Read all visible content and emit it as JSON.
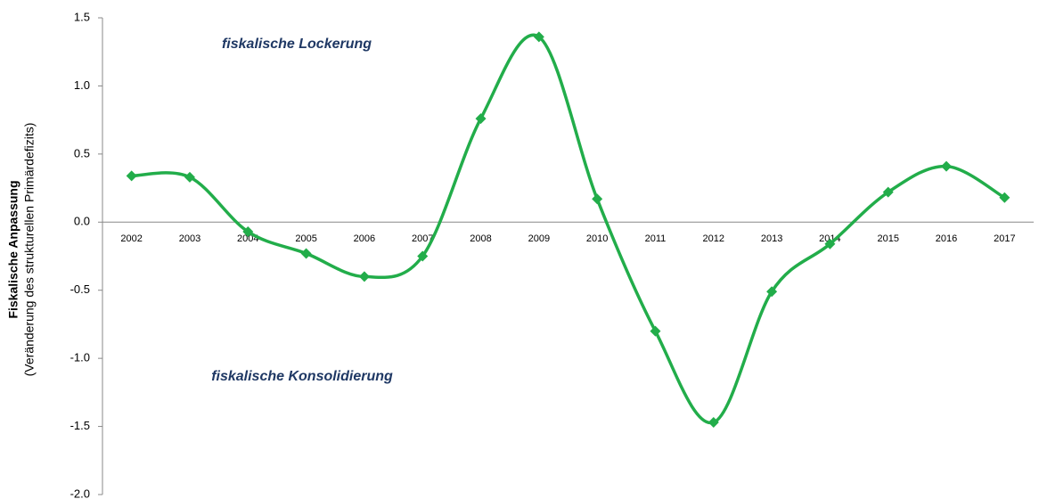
{
  "chart_data": {
    "type": "line",
    "y_label": "Fiskalische Anpassung",
    "y_sublabel": "(Veränderung des strukturellen Primärdefizits)",
    "annotations": [
      "fiskalische Lockerung",
      "fiskalische Konsolidierung"
    ],
    "categories": [
      "2002",
      "2003",
      "2004",
      "2005",
      "2006",
      "2007",
      "2008",
      "2009",
      "2010",
      "2011",
      "2012",
      "2013",
      "2014",
      "2015",
      "2016",
      "2017"
    ],
    "series": [
      {
        "color": "#22ad4a",
        "values": [
          0.34,
          0.33,
          -0.07,
          -0.23,
          -0.4,
          -0.25,
          0.76,
          1.36,
          0.17,
          -0.8,
          -1.47,
          -0.51,
          -0.16,
          0.22,
          0.41,
          0.18
        ]
      }
    ],
    "ylim": [
      -2,
      1.5
    ],
    "yticks": [
      1.5,
      {
        "value": 1,
        "label": "1.0"
      },
      0.5,
      {
        "value": 0,
        "label": "0.0"
      },
      -0.5,
      {
        "value": -1,
        "label": "-1.0"
      },
      -1.5,
      {
        "value": -2,
        "label": "-2.0"
      }
    ],
    "smooth": true
  }
}
